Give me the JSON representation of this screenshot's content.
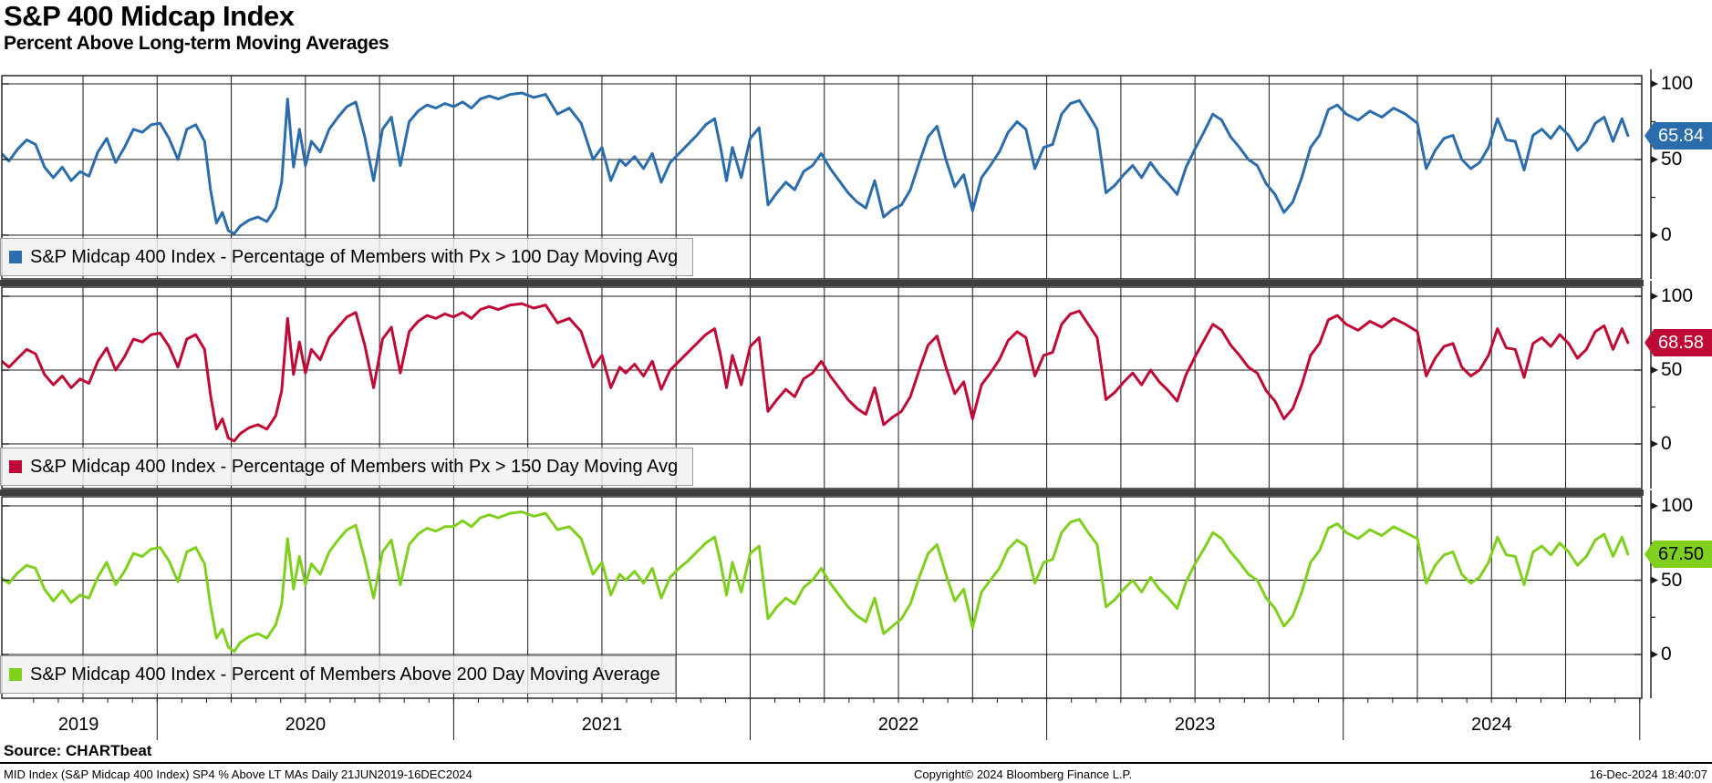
{
  "header": {
    "title": "S&P 400 Midcap Index",
    "subtitle": "Percent Above Long-term Moving Averages"
  },
  "axis": {
    "x_labels": [
      "2019",
      "2020",
      "2021",
      "2022",
      "2023",
      "2024"
    ],
    "y_tick_labels": [
      "100",
      "50",
      "0"
    ]
  },
  "footer": {
    "source": "Source: CHARTbeat",
    "meta_left": "MID Index (S&P Midcap 400 Index) SP4 % Above LT MAs  Daily 21JUN2019-16DEC2024",
    "copyright": "Copyright© 2024 Bloomberg Finance L.P.",
    "timestamp": "16-Dec-2024 18:40:07"
  },
  "chart_data": {
    "type": "line",
    "title": "S&P 400 Midcap Index",
    "subtitle": "Percent Above Long-term Moving Averages",
    "x_unit": "decimal_year",
    "x_range": [
      2019.47,
      2024.96
    ],
    "x_tick_years": [
      "2019",
      "2020",
      "2021",
      "2022",
      "2023",
      "2024"
    ],
    "ylim": [
      0,
      100
    ],
    "y_ticks": [
      0,
      50,
      100
    ],
    "grid": "quarterly vertical lines; horizontal lines at 0/50/100; three stacked panels",
    "legend_position": "bottom-left inside each panel",
    "x": [
      2019.47,
      2019.5,
      2019.53,
      2019.56,
      2019.59,
      2019.62,
      2019.65,
      2019.68,
      2019.71,
      2019.74,
      2019.77,
      2019.8,
      2019.83,
      2019.86,
      2019.89,
      2019.92,
      2019.95,
      2019.98,
      2020.01,
      2020.04,
      2020.07,
      2020.1,
      2020.13,
      2020.16,
      2020.18,
      2020.2,
      2020.22,
      2020.24,
      2020.26,
      2020.28,
      2020.31,
      2020.34,
      2020.37,
      2020.4,
      2020.42,
      2020.44,
      2020.46,
      2020.48,
      2020.5,
      2020.52,
      2020.55,
      2020.58,
      2020.61,
      2020.64,
      2020.67,
      2020.7,
      2020.73,
      2020.76,
      2020.79,
      2020.82,
      2020.85,
      2020.88,
      2020.91,
      2020.94,
      2020.97,
      2021.0,
      2021.03,
      2021.06,
      2021.09,
      2021.12,
      2021.15,
      2021.19,
      2021.23,
      2021.27,
      2021.31,
      2021.35,
      2021.39,
      2021.43,
      2021.47,
      2021.5,
      2021.53,
      2021.56,
      2021.58,
      2021.61,
      2021.64,
      2021.67,
      2021.7,
      2021.73,
      2021.76,
      2021.79,
      2021.82,
      2021.85,
      2021.88,
      2021.9,
      2021.92,
      2021.94,
      2021.97,
      2022.0,
      2022.03,
      2022.06,
      2022.09,
      2022.12,
      2022.15,
      2022.18,
      2022.21,
      2022.24,
      2022.27,
      2022.3,
      2022.33,
      2022.36,
      2022.39,
      2022.42,
      2022.45,
      2022.48,
      2022.51,
      2022.54,
      2022.57,
      2022.6,
      2022.63,
      2022.66,
      2022.69,
      2022.72,
      2022.75,
      2022.78,
      2022.81,
      2022.84,
      2022.87,
      2022.9,
      2022.93,
      2022.96,
      2022.99,
      2023.02,
      2023.05,
      2023.08,
      2023.11,
      2023.14,
      2023.17,
      2023.2,
      2023.23,
      2023.26,
      2023.29,
      2023.32,
      2023.35,
      2023.38,
      2023.41,
      2023.44,
      2023.47,
      2023.5,
      2023.53,
      2023.56,
      2023.59,
      2023.62,
      2023.65,
      2023.68,
      2023.71,
      2023.74,
      2023.77,
      2023.8,
      2023.83,
      2023.86,
      2023.89,
      2023.92,
      2023.95,
      2023.98,
      2024.01,
      2024.05,
      2024.09,
      2024.13,
      2024.17,
      2024.21,
      2024.25,
      2024.28,
      2024.31,
      2024.34,
      2024.37,
      2024.4,
      2024.43,
      2024.46,
      2024.49,
      2024.52,
      2024.55,
      2024.58,
      2024.61,
      2024.64,
      2024.67,
      2024.7,
      2024.73,
      2024.76,
      2024.79,
      2024.82,
      2024.85,
      2024.88,
      2024.91,
      2024.94,
      2024.96
    ],
    "series": [
      {
        "name": "S&P Midcap 400 Index - Percentage of Members with Px > 100 Day Moving Avg",
        "color": "#2b6cad",
        "label_text_color": "#ffffff",
        "last_label": "65.84",
        "panel": 1,
        "values": [
          55,
          49,
          57,
          63,
          60,
          45,
          38,
          45,
          36,
          42,
          39,
          55,
          64,
          48,
          58,
          70,
          68,
          73,
          74,
          64,
          50,
          70,
          73,
          62,
          30,
          8,
          15,
          3,
          1,
          6,
          10,
          12,
          9,
          18,
          35,
          90,
          45,
          70,
          46,
          62,
          55,
          70,
          78,
          85,
          88,
          65,
          36,
          70,
          78,
          46,
          75,
          82,
          86,
          84,
          87,
          85,
          88,
          84,
          90,
          92,
          90,
          93,
          94,
          91,
          93,
          80,
          84,
          74,
          50,
          58,
          36,
          50,
          46,
          52,
          44,
          54,
          35,
          48,
          54,
          60,
          66,
          73,
          77,
          58,
          36,
          58,
          38,
          64,
          71,
          20,
          28,
          35,
          30,
          42,
          46,
          54,
          44,
          36,
          28,
          22,
          18,
          36,
          12,
          17,
          20,
          30,
          48,
          65,
          72,
          50,
          32,
          40,
          16,
          38,
          46,
          55,
          68,
          75,
          70,
          44,
          58,
          60,
          80,
          87,
          89,
          80,
          70,
          28,
          33,
          40,
          46,
          38,
          48,
          40,
          34,
          27,
          45,
          57,
          68,
          80,
          76,
          65,
          58,
          50,
          46,
          34,
          27,
          15,
          22,
          38,
          58,
          66,
          83,
          86,
          80,
          76,
          82,
          78,
          84,
          80,
          74,
          44,
          56,
          64,
          66,
          50,
          44,
          48,
          58,
          77,
          63,
          62,
          43,
          66,
          70,
          64,
          72,
          66,
          56,
          62,
          74,
          78,
          62,
          77,
          65.84
        ]
      },
      {
        "name": "S&P Midcap 400 Index - Percentage of Members with Px > 150 Day Moving Avg",
        "color": "#c00a36",
        "label_text_color": "#ffffff",
        "last_label": "68.58",
        "panel": 2,
        "values": [
          57,
          52,
          58,
          64,
          61,
          47,
          40,
          46,
          38,
          44,
          41,
          56,
          65,
          50,
          59,
          71,
          69,
          74,
          75,
          66,
          52,
          71,
          74,
          64,
          33,
          10,
          17,
          4,
          2,
          7,
          11,
          13,
          10,
          19,
          36,
          85,
          47,
          69,
          48,
          64,
          57,
          72,
          79,
          86,
          89,
          67,
          38,
          71,
          79,
          48,
          76,
          83,
          87,
          85,
          88,
          86,
          89,
          85,
          91,
          93,
          91,
          94,
          95,
          92,
          94,
          82,
          85,
          76,
          52,
          60,
          38,
          52,
          48,
          54,
          46,
          56,
          37,
          50,
          56,
          62,
          68,
          74,
          78,
          60,
          38,
          60,
          40,
          66,
          72,
          22,
          30,
          37,
          32,
          44,
          48,
          56,
          46,
          38,
          30,
          24,
          20,
          38,
          13,
          18,
          22,
          32,
          50,
          67,
          73,
          52,
          34,
          42,
          17,
          40,
          48,
          57,
          70,
          76,
          72,
          46,
          60,
          62,
          81,
          88,
          90,
          81,
          72,
          30,
          35,
          42,
          48,
          40,
          50,
          42,
          36,
          29,
          47,
          59,
          70,
          81,
          77,
          67,
          60,
          52,
          48,
          36,
          29,
          17,
          24,
          40,
          60,
          68,
          84,
          87,
          81,
          77,
          83,
          79,
          85,
          81,
          76,
          46,
          58,
          66,
          68,
          52,
          46,
          50,
          60,
          78,
          65,
          64,
          45,
          68,
          72,
          66,
          74,
          68,
          58,
          64,
          76,
          80,
          64,
          78,
          68.58
        ]
      },
      {
        "name": "S&P Midcap 400 Index - Percent of Members Above 200 Day Moving Average",
        "color": "#7fd01e",
        "label_text_color": "#000000",
        "last_label": "67.50",
        "panel": 3,
        "values": [
          52,
          48,
          55,
          60,
          58,
          44,
          36,
          43,
          35,
          40,
          38,
          52,
          62,
          47,
          56,
          68,
          66,
          71,
          72,
          63,
          49,
          69,
          72,
          61,
          33,
          11,
          17,
          5,
          2,
          8,
          12,
          14,
          11,
          20,
          34,
          78,
          44,
          66,
          47,
          61,
          54,
          69,
          77,
          84,
          87,
          64,
          38,
          69,
          77,
          47,
          74,
          81,
          85,
          83,
          86,
          86,
          90,
          86,
          92,
          94,
          92,
          95,
          96,
          93,
          95,
          84,
          86,
          78,
          54,
          62,
          40,
          54,
          50,
          56,
          48,
          58,
          38,
          52,
          58,
          63,
          69,
          75,
          79,
          62,
          40,
          62,
          42,
          68,
          73,
          24,
          32,
          38,
          34,
          45,
          50,
          58,
          48,
          40,
          32,
          26,
          22,
          38,
          14,
          19,
          24,
          34,
          52,
          68,
          74,
          54,
          36,
          44,
          18,
          42,
          50,
          58,
          71,
          77,
          73,
          48,
          62,
          64,
          82,
          89,
          91,
          82,
          74,
          32,
          37,
          44,
          50,
          42,
          52,
          44,
          38,
          31,
          49,
          61,
          71,
          82,
          78,
          69,
          62,
          54,
          50,
          38,
          31,
          19,
          26,
          42,
          62,
          70,
          85,
          88,
          82,
          78,
          84,
          80,
          86,
          82,
          78,
          48,
          60,
          67,
          69,
          54,
          48,
          52,
          62,
          79,
          67,
          66,
          47,
          69,
          73,
          67,
          75,
          69,
          60,
          66,
          77,
          81,
          66,
          79,
          67.5
        ]
      }
    ]
  }
}
